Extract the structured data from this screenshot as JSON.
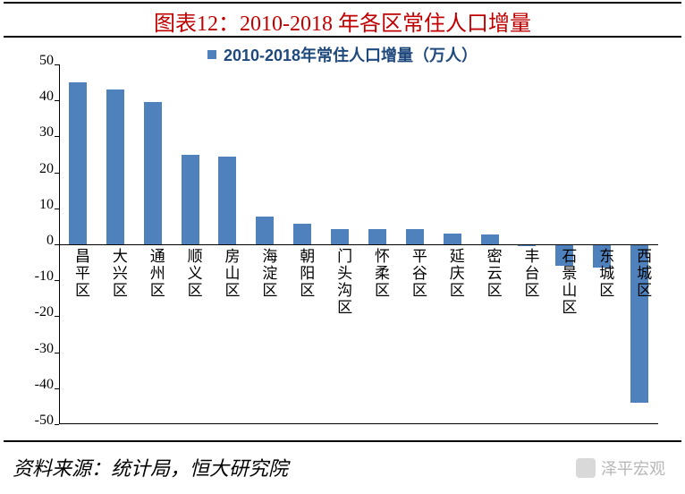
{
  "title": "图表12：2010-2018 年各区常住人口增量",
  "title_fontsize": 24,
  "title_color": "#c00000",
  "legend_label": "2010-2018年常住人口增量（万人）",
  "legend_fontsize": 18,
  "legend_color": "#1f497d",
  "legend_swatch_color": "#4f81bd",
  "source_label": "资料来源：统计局，恒大研究院",
  "watermark_label": "泽平宏观",
  "chart": {
    "type": "bar",
    "categories": [
      "昌平区",
      "大兴区",
      "通州区",
      "顺义区",
      "房山区",
      "海淀区",
      "朝阳区",
      "门头沟区",
      "怀柔区",
      "平谷区",
      "延庆区",
      "密云区",
      "丰台区",
      "石景山区",
      "东城区",
      "西城区"
    ],
    "values": [
      45,
      43,
      39.5,
      25,
      24.5,
      7.8,
      5.8,
      4.2,
      4.2,
      4.2,
      3.0,
      2.8,
      -0.5,
      -6,
      -6.5,
      -44
    ],
    "bar_color": "#4f81bd",
    "bar_width_ratio": 0.48,
    "ylim": [
      -50,
      50
    ],
    "ytick_step": 10,
    "axis_color": "#000000",
    "background_color": "#ffffff",
    "label_fontsize": 17
  },
  "header_rule_color": "#000000"
}
